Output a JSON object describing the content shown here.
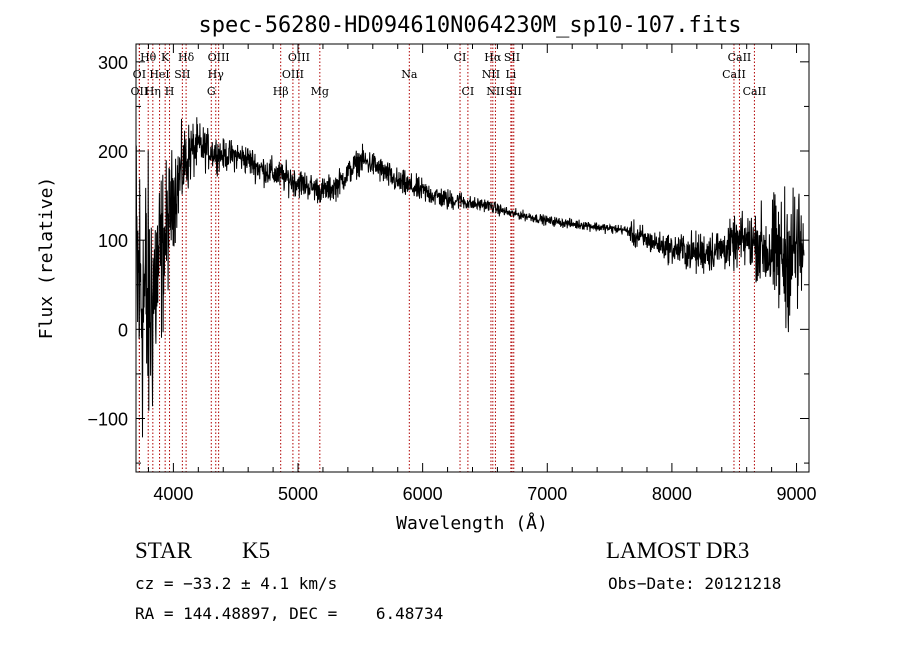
{
  "chart_data": {
    "type": "line",
    "title": "spec-56280-HD094610N064230M_sp10-107.fits",
    "xlabel": "Wavelength (Å)",
    "ylabel": "Flux (relative)",
    "xlim": [
      3700,
      9100
    ],
    "ylim": [
      -160,
      320
    ],
    "x_ticks": [
      4000,
      5000,
      6000,
      7000,
      8000,
      9000
    ],
    "y_ticks": [
      -100,
      0,
      100,
      200,
      300
    ],
    "grid": false,
    "line_color": "#000000",
    "marker_color": "#b00000",
    "spectrum_anchors": {
      "x": [
        3700,
        3750,
        3800,
        3850,
        3900,
        3950,
        4000,
        4050,
        4100,
        4150,
        4200,
        4300,
        4400,
        4500,
        4600,
        4700,
        4800,
        4900,
        5000,
        5100,
        5200,
        5300,
        5400,
        5500,
        5600,
        5700,
        5800,
        5900,
        6000,
        6100,
        6200,
        6300,
        6400,
        6500,
        6600,
        6700,
        6800,
        6900,
        7000,
        7100,
        7200,
        7300,
        7400,
        7500,
        7600,
        7650,
        7700,
        7800,
        7900,
        8000,
        8100,
        8200,
        8300,
        8400,
        8500,
        8600,
        8700,
        8800,
        8900,
        9000,
        9060
      ],
      "y": [
        60,
        40,
        20,
        50,
        80,
        110,
        150,
        170,
        190,
        200,
        205,
        200,
        195,
        195,
        190,
        180,
        175,
        170,
        165,
        160,
        155,
        160,
        175,
        190,
        185,
        175,
        165,
        160,
        155,
        150,
        145,
        145,
        140,
        140,
        135,
        130,
        128,
        125,
        122,
        120,
        118,
        117,
        115,
        113,
        112,
        110,
        105,
        100,
        95,
        90,
        88,
        85,
        88,
        90,
        95,
        100,
        95,
        85,
        80,
        90,
        85
      ],
      "noise": [
        260,
        260,
        240,
        200,
        150,
        110,
        80,
        70,
        60,
        50,
        40,
        30,
        25,
        25,
        25,
        25,
        25,
        25,
        25,
        22,
        22,
        22,
        22,
        22,
        22,
        22,
        22,
        22,
        20,
        18,
        18,
        15,
        12,
        10,
        10,
        8,
        8,
        8,
        8,
        8,
        8,
        8,
        8,
        8,
        8,
        8,
        25,
        20,
        20,
        25,
        30,
        35,
        35,
        35,
        40,
        45,
        60,
        90,
        110,
        120,
        80
      ]
    },
    "lines": [
      {
        "label": "Hθ",
        "wave": 3798,
        "row": 0
      },
      {
        "label": "K",
        "wave": 3934,
        "row": 0
      },
      {
        "label": "Hδ",
        "wave": 4102,
        "row": 0
      },
      {
        "label": "OIII",
        "wave": 4363,
        "row": 0
      },
      {
        "label": "OIII",
        "wave": 5007,
        "row": 0
      },
      {
        "label": "CI",
        "wave": 6300,
        "row": 0
      },
      {
        "label": "Hα",
        "wave": 6563,
        "row": 0
      },
      {
        "label": "SII",
        "wave": 6717,
        "row": 0
      },
      {
        "label": "CaII",
        "wave": 8542,
        "row": 0
      },
      {
        "label": "OI",
        "wave": 3727,
        "row": 1
      },
      {
        "label": "HeI",
        "wave": 3889,
        "row": 1
      },
      {
        "label": "SII",
        "wave": 4072,
        "row": 1
      },
      {
        "label": "Hγ",
        "wave": 4340,
        "row": 1
      },
      {
        "label": "OIII",
        "wave": 4959,
        "row": 1
      },
      {
        "label": "Na",
        "wave": 5893,
        "row": 1
      },
      {
        "label": "NII",
        "wave": 6548,
        "row": 1
      },
      {
        "label": "Li",
        "wave": 6708,
        "row": 1
      },
      {
        "label": "CaII",
        "wave": 8498,
        "row": 1
      },
      {
        "label": "OII",
        "wave": 3727,
        "row": 2
      },
      {
        "label": "Hη",
        "wave": 3835,
        "row": 2
      },
      {
        "label": "H",
        "wave": 3969,
        "row": 2
      },
      {
        "label": "G",
        "wave": 4304,
        "row": 2
      },
      {
        "label": "Hβ",
        "wave": 4861,
        "row": 2
      },
      {
        "label": "Mg",
        "wave": 5175,
        "row": 2
      },
      {
        "label": "CI",
        "wave": 6363,
        "row": 2
      },
      {
        "label": "NII",
        "wave": 6584,
        "row": 2
      },
      {
        "label": "SII",
        "wave": 6731,
        "row": 2
      },
      {
        "label": "CaII",
        "wave": 8662,
        "row": 2
      }
    ]
  },
  "info": {
    "class": "STAR",
    "subclass": "K5",
    "cz": "cz = −33.2 ± 4.1 km/s",
    "radec": "RA = 144.48897, DEC =    6.48734",
    "survey": "LAMOST DR3",
    "obs_date": "Obs−Date: 20121218"
  }
}
